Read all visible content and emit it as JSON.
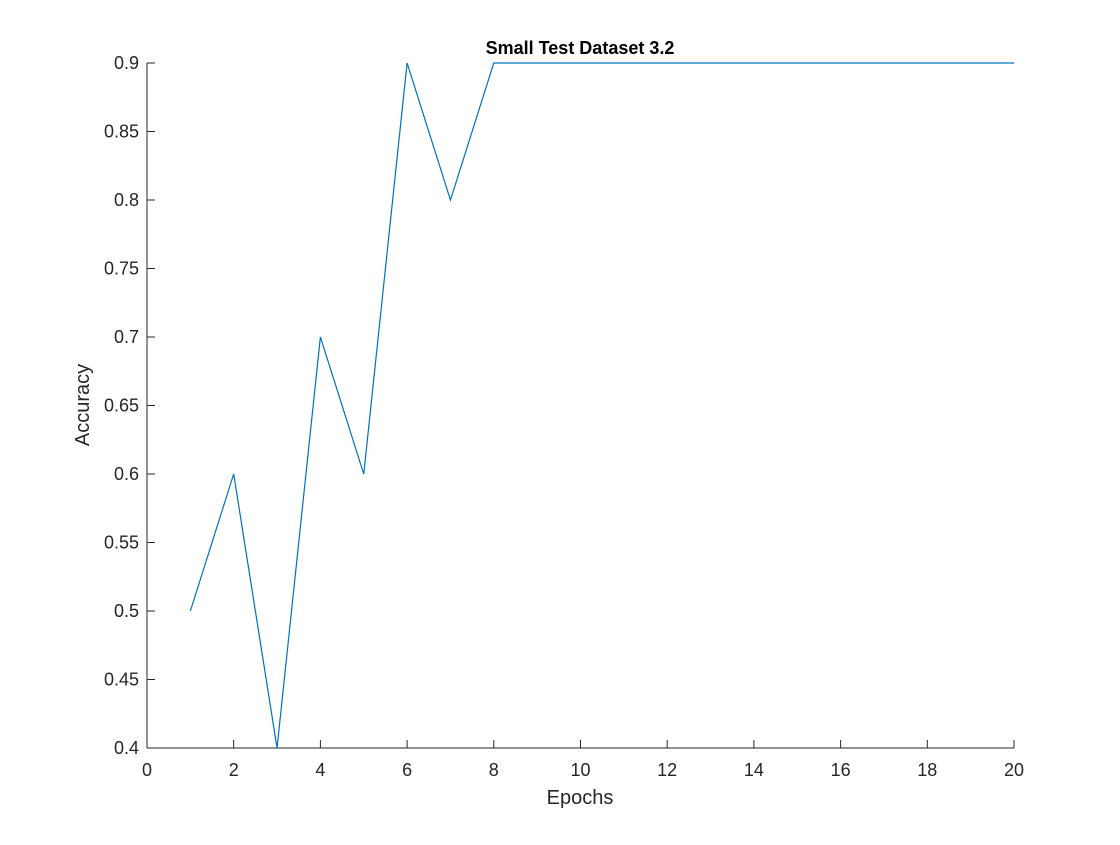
{
  "chart_data": {
    "type": "line",
    "title": "Small Test Dataset 3.2",
    "xlabel": "Epochs",
    "ylabel": "Accuracy",
    "xlim": [
      0,
      20
    ],
    "ylim": [
      0.4,
      0.9
    ],
    "xticks": [
      0,
      2,
      4,
      6,
      8,
      10,
      12,
      14,
      16,
      18,
      20
    ],
    "yticks": [
      0.4,
      0.45,
      0.5,
      0.55,
      0.6,
      0.65,
      0.7,
      0.75,
      0.8,
      0.85,
      0.9
    ],
    "xtick_labels": [
      "0",
      "2",
      "4",
      "6",
      "8",
      "10",
      "12",
      "14",
      "16",
      "18",
      "20"
    ],
    "ytick_labels": [
      "0.4",
      "0.45",
      "0.5",
      "0.55",
      "0.6",
      "0.65",
      "0.7",
      "0.75",
      "0.8",
      "0.85",
      "0.9"
    ],
    "grid": false,
    "series": [
      {
        "color": "#0072BD",
        "x": [
          1,
          2,
          3,
          4,
          5,
          6,
          7,
          8,
          9,
          10,
          11,
          12,
          13,
          14,
          15,
          16,
          17,
          18,
          19,
          20
        ],
        "y": [
          0.5,
          0.6,
          0.4,
          0.7,
          0.6,
          0.9,
          0.8,
          0.9,
          0.9,
          0.9,
          0.9,
          0.9,
          0.9,
          0.9,
          0.9,
          0.9,
          0.9,
          0.9,
          0.9,
          0.9
        ]
      }
    ]
  }
}
